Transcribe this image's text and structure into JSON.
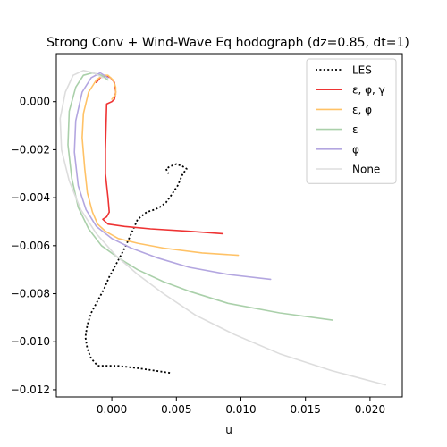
{
  "chart_data": {
    "type": "line",
    "title": "Strong Conv + Wind-Wave Eq hodograph (dz=0.85, dt=1)",
    "xlabel": "u",
    "ylabel": "",
    "xlim": [
      -0.0043,
      0.0225
    ],
    "ylim": [
      -0.0123,
      0.002
    ],
    "xticks": [
      0.0,
      0.005,
      0.01,
      0.015,
      0.02
    ],
    "xtick_labels": [
      "0.000",
      "0.005",
      "0.010",
      "0.015",
      "0.020"
    ],
    "yticks": [
      0.0,
      -0.002,
      -0.004,
      -0.006,
      -0.008,
      -0.01,
      -0.012
    ],
    "ytick_labels": [
      "0.000",
      "−0.002",
      "−0.004",
      "−0.006",
      "−0.008",
      "−0.010",
      "−0.012"
    ],
    "grid": false,
    "legend_position": "top-right",
    "series": [
      {
        "name": "LES",
        "color": "#000000",
        "dash": "dotted",
        "x": [
          0.0045,
          0.002,
          0.0004,
          -0.0011,
          -0.0016,
          -0.0019,
          -0.00205,
          -0.0019,
          -0.0016,
          -0.0011,
          -0.0006,
          -0.0002,
          0.0004,
          0.001,
          0.0015,
          0.002,
          0.0027,
          0.0033,
          0.0037,
          0.0042,
          0.0046,
          0.0051,
          0.0055,
          0.0058,
          0.0055,
          0.005,
          0.0045,
          0.0042,
          0.0044
        ],
        "y": [
          -0.0113,
          -0.0111,
          -0.011,
          -0.011,
          -0.0107,
          -0.0103,
          -0.0098,
          -0.0093,
          -0.0088,
          -0.0083,
          -0.0078,
          -0.0073,
          -0.0067,
          -0.0061,
          -0.0055,
          -0.0049,
          -0.0046,
          -0.0045,
          -0.0044,
          -0.0042,
          -0.0039,
          -0.0035,
          -0.003,
          -0.0028,
          -0.0027,
          -0.0026,
          -0.0027,
          -0.0028,
          -0.003
        ]
      },
      {
        "name": "ε, φ, γ",
        "color": "#ee3333",
        "dash": "solid",
        "x": [
          0.0086,
          0.006,
          0.003,
          0.001,
          -0.0003,
          -0.0007,
          -0.0004,
          -0.0002,
          -0.0003,
          -0.0005,
          -0.0005,
          -0.0004,
          0.0,
          0.0002,
          0.0003,
          0.0002,
          -0.0001,
          -0.0005,
          -0.0009,
          -0.0012
        ],
        "y": [
          -0.0055,
          -0.0054,
          -0.0053,
          -0.0052,
          -0.0051,
          -0.0049,
          -0.0048,
          -0.0046,
          -0.004,
          -0.003,
          -0.002,
          -0.0001,
          0.0,
          0.0001,
          0.0004,
          0.0008,
          0.001,
          0.0011,
          0.001,
          0.0008
        ]
      },
      {
        "name": "ε, φ",
        "color": "#ffc266",
        "dash": "solid",
        "x": [
          0.0098,
          0.007,
          0.004,
          0.002,
          0.0005,
          -0.0005,
          -0.0011,
          -0.0015,
          -0.0019,
          -0.0021,
          -0.0023,
          -0.0022,
          -0.0018,
          -0.0012,
          -0.0007,
          -0.0003,
          0.0001,
          0.0003,
          0.0003,
          0.0
        ],
        "y": [
          -0.0064,
          -0.0063,
          -0.0061,
          -0.0059,
          -0.0057,
          -0.0054,
          -0.0051,
          -0.0046,
          -0.0038,
          -0.0028,
          -0.0015,
          -0.0005,
          0.0004,
          0.0009,
          0.0011,
          0.0011,
          0.0009,
          0.0006,
          0.0003,
          0.0001
        ]
      },
      {
        "name": "ε",
        "color": "#aad0aa",
        "dash": "solid",
        "x": [
          0.0171,
          0.013,
          0.009,
          0.006,
          0.004,
          0.002,
          0.0005,
          -0.0008,
          -0.0018,
          -0.0026,
          -0.0031,
          -0.0034,
          -0.0033,
          -0.0028,
          -0.0022,
          -0.0015,
          -0.0008,
          -0.0003
        ],
        "y": [
          -0.0091,
          -0.0088,
          -0.0084,
          -0.0079,
          -0.0075,
          -0.007,
          -0.0065,
          -0.006,
          -0.0053,
          -0.0044,
          -0.0032,
          -0.0018,
          -0.0004,
          0.0006,
          0.0011,
          0.0012,
          0.0011,
          0.0009
        ]
      },
      {
        "name": "φ",
        "color": "#b3a6e0",
        "dash": "solid",
        "x": [
          0.0123,
          0.009,
          0.006,
          0.0035,
          0.0015,
          0.0,
          -0.0012,
          -0.002,
          -0.0026,
          -0.0029,
          -0.0028,
          -0.0023,
          -0.0016,
          -0.0009,
          -0.0003
        ],
        "y": [
          -0.0074,
          -0.0072,
          -0.0069,
          -0.0065,
          -0.0061,
          -0.0057,
          -0.0052,
          -0.0045,
          -0.0035,
          -0.0021,
          -0.0008,
          0.0004,
          0.001,
          0.0012,
          0.001
        ]
      },
      {
        "name": "None",
        "color": "#dddddd",
        "dash": "solid",
        "x": [
          0.0212,
          0.017,
          0.013,
          0.0095,
          0.0065,
          0.004,
          0.002,
          0.0003,
          -0.0012,
          -0.0024,
          -0.0033,
          -0.0039,
          -0.004,
          -0.0036,
          -0.003,
          -0.0022,
          -0.0014,
          -0.0007
        ],
        "y": [
          -0.0118,
          -0.0112,
          -0.0105,
          -0.0097,
          -0.0089,
          -0.008,
          -0.0072,
          -0.0064,
          -0.0055,
          -0.0045,
          -0.0033,
          -0.002,
          -0.0007,
          0.0004,
          0.0011,
          0.0013,
          0.0012,
          0.001
        ]
      }
    ]
  }
}
